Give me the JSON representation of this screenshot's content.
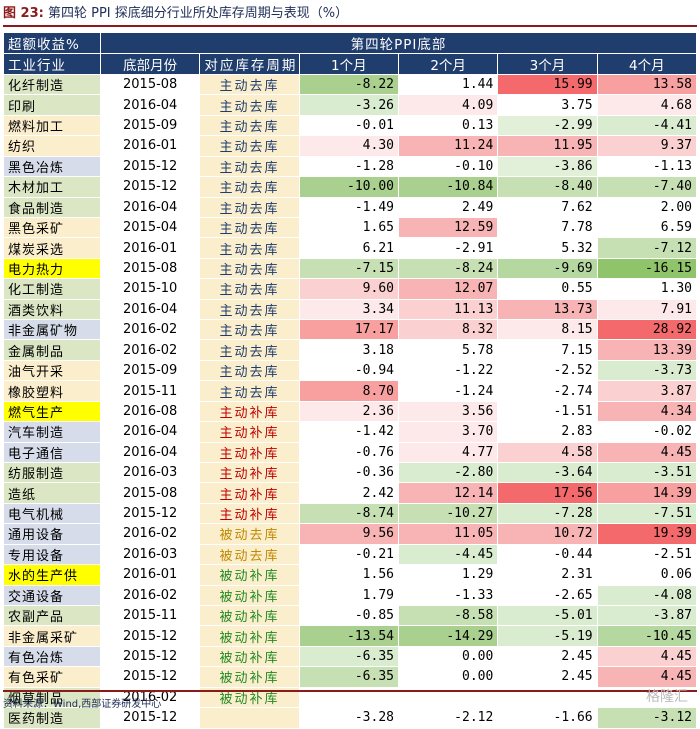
{
  "title_label": "图 23:",
  "title_text": "第四轮 PPI 探底细分行业所处库存周期与表现（%）",
  "header1": [
    "超额收益%",
    "第四轮PPI底部"
  ],
  "header2": [
    "工业行业",
    "底部月份",
    "对应库存周期",
    "1个月",
    "2个月",
    "3个月",
    "4个月"
  ],
  "rows": [
    {
      "name": "化纤制造",
      "bg": "#dbe6c4",
      "month": "2015-08",
      "cycle": "主动去库",
      "ctype": "t-main-q",
      "v": [
        "-8.22",
        "1.44",
        "15.99",
        "13.58"
      ],
      "c": [
        "#a9d08e",
        "#ffffff",
        "#f4696b",
        "#f8a0a0"
      ]
    },
    {
      "name": "印刷",
      "bg": "#dbe6c4",
      "month": "2016-04",
      "cycle": "主动去库",
      "ctype": "t-main-q",
      "v": [
        "-3.26",
        "4.09",
        "3.75",
        "4.68"
      ],
      "c": [
        "#d9ecd0",
        "#fde9e9",
        "#ffffff",
        "#fde9e9"
      ]
    },
    {
      "name": "燃料加工",
      "bg": "#fbeecd",
      "month": "2015-09",
      "cycle": "主动去库",
      "ctype": "t-main-q",
      "v": [
        "-0.01",
        "0.13",
        "-2.99",
        "-4.41"
      ],
      "c": [
        "#ffffff",
        "#ffffff",
        "#e2f0d9",
        "#d9ecd0"
      ]
    },
    {
      "name": "纺织",
      "bg": "#fbeecd",
      "month": "2016-01",
      "cycle": "主动去库",
      "ctype": "t-main-q",
      "v": [
        "4.30",
        "11.24",
        "11.95",
        "9.37"
      ],
      "c": [
        "#fde9e9",
        "#f8b4b4",
        "#f8b4b4",
        "#fbd0d0"
      ]
    },
    {
      "name": "黑色冶炼",
      "bg": "#d6dcea",
      "month": "2015-12",
      "cycle": "主动去库",
      "ctype": "t-main-q",
      "v": [
        "-1.28",
        "-0.10",
        "-3.86",
        "-1.13"
      ],
      "c": [
        "#ffffff",
        "#ffffff",
        "#e2f0d9",
        "#ffffff"
      ]
    },
    {
      "name": "木材加工",
      "bg": "#dbe6c4",
      "month": "2015-12",
      "cycle": "主动去库",
      "ctype": "t-main-q",
      "v": [
        "-10.00",
        "-10.84",
        "-8.40",
        "-7.40"
      ],
      "c": [
        "#a9d08e",
        "#a9d08e",
        "#c6e0b4",
        "#c6e0b4"
      ]
    },
    {
      "name": "食品制造",
      "bg": "#dbe6c4",
      "month": "2016-04",
      "cycle": "主动去库",
      "ctype": "t-main-q",
      "v": [
        "-1.49",
        "2.49",
        "7.62",
        "2.00"
      ],
      "c": [
        "#ffffff",
        "#ffffff",
        "#ffffff",
        "#ffffff"
      ]
    },
    {
      "name": "黑色采矿",
      "bg": "#fbeecd",
      "month": "2015-04",
      "cycle": "主动去库",
      "ctype": "t-main-q",
      "v": [
        "1.65",
        "12.59",
        "7.78",
        "6.59"
      ],
      "c": [
        "#ffffff",
        "#f8b4b4",
        "#ffffff",
        "#ffffff"
      ]
    },
    {
      "name": "煤炭采选",
      "bg": "#fbeecd",
      "month": "2016-01",
      "cycle": "主动去库",
      "ctype": "t-main-q",
      "v": [
        "6.21",
        "-2.91",
        "5.32",
        "-7.12"
      ],
      "c": [
        "#ffffff",
        "#ffffff",
        "#ffffff",
        "#c6e0b4"
      ]
    },
    {
      "name": "电力热力",
      "bg": "#ffff00",
      "month": "2015-08",
      "cycle": "主动去库",
      "ctype": "t-main-q",
      "v": [
        "-7.15",
        "-8.24",
        "-9.69",
        "-16.15"
      ],
      "c": [
        "#c6e0b4",
        "#c6e0b4",
        "#b5d7a0",
        "#8fc46a"
      ]
    },
    {
      "name": "化工制造",
      "bg": "#dbe6c4",
      "month": "2015-10",
      "cycle": "主动去库",
      "ctype": "t-main-q",
      "v": [
        "9.60",
        "12.07",
        "0.55",
        "1.30"
      ],
      "c": [
        "#fbd0d0",
        "#f8b4b4",
        "#ffffff",
        "#ffffff"
      ]
    },
    {
      "name": "酒类饮料",
      "bg": "#dbe6c4",
      "month": "2016-04",
      "cycle": "主动去库",
      "ctype": "t-main-q",
      "v": [
        "3.34",
        "11.13",
        "13.73",
        "7.91"
      ],
      "c": [
        "#fde9e9",
        "#fbd0d0",
        "#f8b4b4",
        "#fde9e9"
      ]
    },
    {
      "name": "非金属矿物",
      "bg": "#d6dcea",
      "month": "2016-02",
      "cycle": "主动去库",
      "ctype": "t-main-q",
      "v": [
        "17.17",
        "8.32",
        "8.15",
        "28.92"
      ],
      "c": [
        "#f8a0a0",
        "#fbd0d0",
        "#fde9e9",
        "#f4696b"
      ]
    },
    {
      "name": "金属制品",
      "bg": "#dbe6c4",
      "month": "2016-02",
      "cycle": "主动去库",
      "ctype": "t-main-q",
      "v": [
        "3.18",
        "5.78",
        "7.15",
        "13.39"
      ],
      "c": [
        "#ffffff",
        "#ffffff",
        "#ffffff",
        "#f8b4b4"
      ]
    },
    {
      "name": "油气开采",
      "bg": "#fbeecd",
      "month": "2015-09",
      "cycle": "主动去库",
      "ctype": "t-main-q",
      "v": [
        "-0.94",
        "-1.22",
        "-2.52",
        "-3.73"
      ],
      "c": [
        "#ffffff",
        "#ffffff",
        "#ffffff",
        "#d9ecd0"
      ]
    },
    {
      "name": "橡胶塑料",
      "bg": "#fbeecd",
      "month": "2015-11",
      "cycle": "主动去库",
      "ctype": "t-main-q",
      "v": [
        "8.70",
        "-1.24",
        "-2.74",
        "3.87"
      ],
      "c": [
        "#f8a0a0",
        "#ffffff",
        "#ffffff",
        "#fbd0d0"
      ]
    },
    {
      "name": "燃气生产",
      "bg": "#ffff00",
      "month": "2016-08",
      "cycle": "主动补库",
      "ctype": "t-main-b",
      "v": [
        "2.36",
        "3.56",
        "-1.51",
        "4.34"
      ],
      "c": [
        "#fde9e9",
        "#fde9e9",
        "#ffffff",
        "#f8b4b4"
      ]
    },
    {
      "name": "汽车制造",
      "bg": "#d6dcea",
      "month": "2016-04",
      "cycle": "主动补库",
      "ctype": "t-main-b",
      "v": [
        "-1.42",
        "3.70",
        "2.83",
        "-0.02"
      ],
      "c": [
        "#ffffff",
        "#fde9e9",
        "#ffffff",
        "#ffffff"
      ]
    },
    {
      "name": "电子通信",
      "bg": "#d6dcea",
      "month": "2016-04",
      "cycle": "主动补库",
      "ctype": "t-main-b",
      "v": [
        "-0.76",
        "4.77",
        "4.58",
        "4.45"
      ],
      "c": [
        "#ffffff",
        "#fde9e9",
        "#fbd0d0",
        "#f8b4b4"
      ]
    },
    {
      "name": "纺服制造",
      "bg": "#dbe6c4",
      "month": "2016-03",
      "cycle": "主动补库",
      "ctype": "t-main-b",
      "v": [
        "-0.36",
        "-2.80",
        "-3.64",
        "-3.51"
      ],
      "c": [
        "#ffffff",
        "#d9ecd0",
        "#d9ecd0",
        "#d9ecd0"
      ]
    },
    {
      "name": "造纸",
      "bg": "#dbe6c4",
      "month": "2015-08",
      "cycle": "主动补库",
      "ctype": "t-main-b",
      "v": [
        "2.42",
        "12.14",
        "17.56",
        "14.39"
      ],
      "c": [
        "#ffffff",
        "#f8b4b4",
        "#f4696b",
        "#f8a0a0"
      ]
    },
    {
      "name": "电气机械",
      "bg": "#d6dcea",
      "month": "2015-12",
      "cycle": "主动补库",
      "ctype": "t-main-b",
      "v": [
        "-8.74",
        "-10.27",
        "-7.28",
        "-7.51"
      ],
      "c": [
        "#c6e0b4",
        "#c6e0b4",
        "#d9ecd0",
        "#d9ecd0"
      ]
    },
    {
      "name": "通用设备",
      "bg": "#d6dcea",
      "month": "2016-02",
      "cycle": "被动去库",
      "ctype": "t-pass-q",
      "v": [
        "9.56",
        "11.05",
        "10.72",
        "19.39"
      ],
      "c": [
        "#f8b4b4",
        "#f8b4b4",
        "#f8b4b4",
        "#f4696b"
      ]
    },
    {
      "name": "专用设备",
      "bg": "#d6dcea",
      "month": "2016-03",
      "cycle": "被动去库",
      "ctype": "t-pass-q",
      "v": [
        "-0.21",
        "-4.45",
        "-0.44",
        "-2.51"
      ],
      "c": [
        "#ffffff",
        "#d9ecd0",
        "#ffffff",
        "#ffffff"
      ]
    },
    {
      "name": "水的生产供",
      "bg": "#ffff00",
      "month": "2016-01",
      "cycle": "被动补库",
      "ctype": "t-pass-b",
      "v": [
        "1.56",
        "1.29",
        "2.31",
        "0.06"
      ],
      "c": [
        "#ffffff",
        "#ffffff",
        "#ffffff",
        "#ffffff"
      ]
    },
    {
      "name": "交通设备",
      "bg": "#d6dcea",
      "month": "2016-02",
      "cycle": "被动补库",
      "ctype": "t-pass-b",
      "v": [
        "1.79",
        "-1.33",
        "-2.65",
        "-4.08"
      ],
      "c": [
        "#ffffff",
        "#ffffff",
        "#ffffff",
        "#d9ecd0"
      ]
    },
    {
      "name": "农副产品",
      "bg": "#dbe6c4",
      "month": "2015-11",
      "cycle": "被动补库",
      "ctype": "t-pass-b",
      "v": [
        "-0.85",
        "-8.58",
        "-5.01",
        "-3.87"
      ],
      "c": [
        "#ffffff",
        "#c6e0b4",
        "#d9ecd0",
        "#d9ecd0"
      ]
    },
    {
      "name": "非金属采矿",
      "bg": "#fbeecd",
      "month": "2015-12",
      "cycle": "被动补库",
      "ctype": "t-pass-b",
      "v": [
        "-13.54",
        "-14.29",
        "-5.19",
        "-10.45"
      ],
      "c": [
        "#a9d08e",
        "#a9d08e",
        "#d9ecd0",
        "#b5d7a0"
      ]
    },
    {
      "name": "有色冶炼",
      "bg": "#d6dcea",
      "month": "2015-12",
      "cycle": "被动补库",
      "ctype": "t-pass-b",
      "v": [
        "-6.35",
        "0.00",
        "2.45",
        "4.45"
      ],
      "c": [
        "#d9ecd0",
        "#ffffff",
        "#ffffff",
        "#fbd0d0"
      ]
    },
    {
      "name": "有色采矿",
      "bg": "#fbeecd",
      "month": "2015-12",
      "cycle": "被动补库",
      "ctype": "t-pass-b",
      "v": [
        "-6.35",
        "0.00",
        "2.45",
        "4.45"
      ],
      "c": [
        "#c6e0b4",
        "#ffffff",
        "#ffffff",
        "#f8b4b4"
      ]
    },
    {
      "name": "烟草制品",
      "bg": "#dbe6c4",
      "month": "2016-02",
      "cycle": "被动补库",
      "ctype": "t-pass-b",
      "v": [
        "",
        "",
        "",
        ""
      ],
      "c": [
        "#ffffff",
        "#ffffff",
        "#ffffff",
        "#ffffff"
      ]
    },
    {
      "name": "医药制造",
      "bg": "#dbe6c4",
      "month": "2015-12",
      "cycle": "",
      "ctype": "t-pass-b",
      "v": [
        "-3.28",
        "-2.12",
        "-1.66",
        "-3.12"
      ],
      "c": [
        "#ffffff",
        "#ffffff",
        "#ffffff",
        "#c6e0b4"
      ]
    }
  ],
  "footer": "资料来源：Wind,西部证券研发中心",
  "watermark": "格隆汇"
}
